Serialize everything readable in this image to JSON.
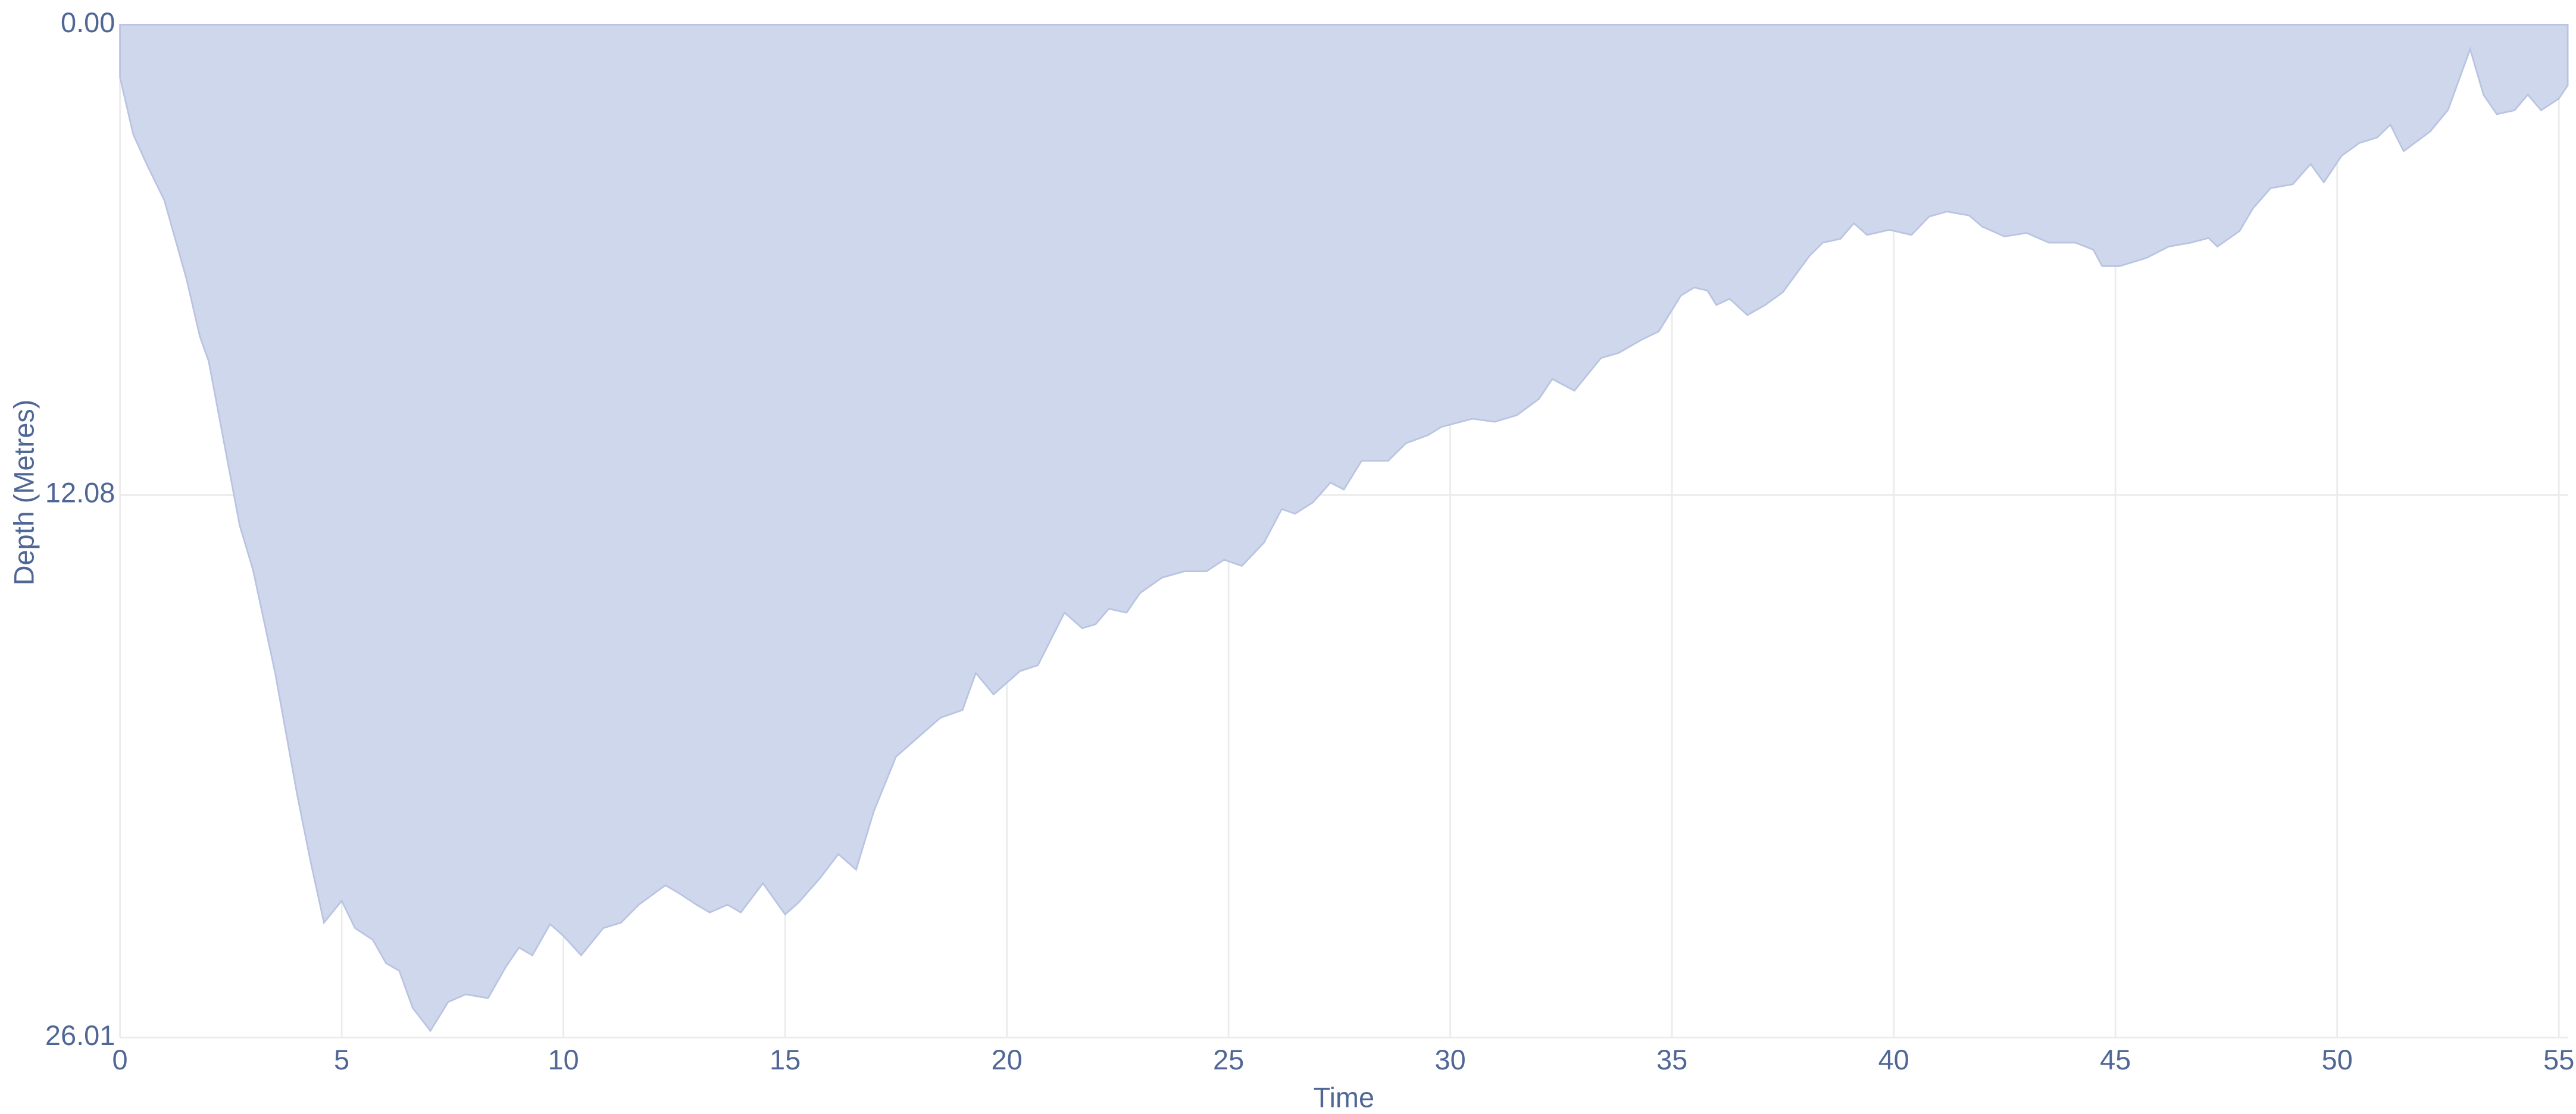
{
  "chart_data": {
    "type": "area",
    "x_label": "Time",
    "y_label": "Depth (Metres)",
    "y_reversed": true,
    "grid": true,
    "color": "#cfd7ec",
    "line_color": "#b9c4e2",
    "xlim": [
      0,
      55.2
    ],
    "ylim": [
      0,
      26.01
    ],
    "xticks": [
      0,
      5,
      10,
      15,
      20,
      25,
      30,
      35,
      40,
      45,
      50,
      55
    ],
    "yticks": [
      {
        "value": 0,
        "label": "0.00"
      },
      12.08,
      26.01
    ],
    "x": [
      0,
      0.3,
      0.6,
      1,
      1.5,
      1.8,
      2,
      2.7,
      3,
      3.5,
      4,
      4.3,
      4.6,
      5,
      5.3,
      5.7,
      6,
      6.3,
      6.6,
      7,
      7.4,
      7.8,
      8.3,
      8.7,
      9,
      9.3,
      9.7,
      10,
      10.4,
      10.9,
      11.3,
      11.7,
      12.3,
      12.6,
      13,
      13.3,
      13.7,
      14,
      14.5,
      15,
      15.3,
      15.8,
      16.2,
      16.6,
      17,
      17.5,
      18,
      18.5,
      19,
      19.3,
      19.7,
      20.3,
      20.7,
      21.3,
      21.7,
      22,
      22.3,
      22.7,
      23,
      23.5,
      24,
      24.5,
      24.9,
      25.3,
      25.8,
      26.2,
      26.5,
      26.9,
      27.3,
      27.6,
      28,
      28.6,
      29,
      29.5,
      29.8,
      30.5,
      31,
      31.5,
      32,
      32.3,
      32.8,
      33.4,
      33.8,
      34.3,
      34.7,
      35.2,
      35.5,
      35.8,
      36,
      36.3,
      36.7,
      37.1,
      37.5,
      38.1,
      38.4,
      38.8,
      39.1,
      39.4,
      39.9,
      40.4,
      40.8,
      41.2,
      41.7,
      42,
      42.5,
      43,
      43.5,
      44.1,
      44.5,
      44.7,
      45.1,
      45.7,
      46.2,
      46.7,
      47.1,
      47.3,
      47.8,
      48.1,
      48.5,
      49,
      49.4,
      49.7,
      50.1,
      50.5,
      50.9,
      51.2,
      51.5,
      52.1,
      52.5,
      53,
      53.3,
      53.6,
      54,
      54.3,
      54.6,
      55,
      55.2
    ],
    "values": [
      1.35,
      2.82,
      3.58,
      4.51,
      6.53,
      8.0,
      8.64,
      12.86,
      14.0,
      16.65,
      19.8,
      21.5,
      23.06,
      22.5,
      23.2,
      23.5,
      24.1,
      24.3,
      25.25,
      25.84,
      25.1,
      24.9,
      25.0,
      24.2,
      23.7,
      23.9,
      23.1,
      23.4,
      23.9,
      23.2,
      23.06,
      22.6,
      22.1,
      22.3,
      22.6,
      22.8,
      22.6,
      22.8,
      22.05,
      22.85,
      22.55,
      21.9,
      21.3,
      21.7,
      20.2,
      18.8,
      18.3,
      17.8,
      17.6,
      16.65,
      17.2,
      16.6,
      16.45,
      15.1,
      15.5,
      15.4,
      15.0,
      15.1,
      14.6,
      14.2,
      14.04,
      14.04,
      13.74,
      13.9,
      13.3,
      12.44,
      12.56,
      12.27,
      11.76,
      11.94,
      11.2,
      11.2,
      10.75,
      10.54,
      10.33,
      10.12,
      10.2,
      10.03,
      9.61,
      9.1,
      9.4,
      8.56,
      8.43,
      8.1,
      7.88,
      6.96,
      6.75,
      6.83,
      7.2,
      7.04,
      7.46,
      7.2,
      6.87,
      5.94,
      5.6,
      5.5,
      5.1,
      5.4,
      5.27,
      5.4,
      4.93,
      4.8,
      4.9,
      5.19,
      5.44,
      5.35,
      5.6,
      5.6,
      5.78,
      6.2,
      6.2,
      5.99,
      5.7,
      5.6,
      5.48,
      5.7,
      5.3,
      4.72,
      4.2,
      4.1,
      3.58,
      4.05,
      3.37,
      3.04,
      2.9,
      2.57,
      3.25,
      2.74,
      2.19,
      0.63,
      1.8,
      2.3,
      2.2,
      1.8,
      2.2,
      1.9,
      1.56
    ]
  }
}
